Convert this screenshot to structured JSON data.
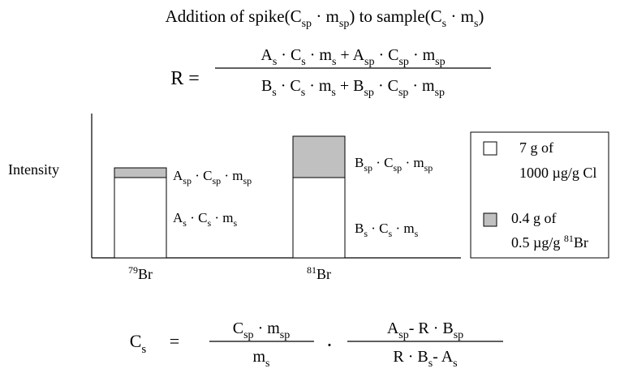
{
  "title": [
    {
      "t": "Addition of spike(C",
      "sub": "sp"
    },
    {
      "t": " · m",
      "sub": "sp"
    },
    {
      "t": ") to sample(C",
      "sub": "s"
    },
    {
      "t": " · m",
      "sub": "s"
    },
    {
      "t": ")"
    }
  ],
  "r_formula": {
    "lhs": [
      {
        "t": "R ="
      }
    ],
    "numerator": [
      {
        "t": "A",
        "sub": "s"
      },
      {
        "t": " · C",
        "sub": "s"
      },
      {
        "t": " · m",
        "sub": "s"
      },
      {
        "t": " + A",
        "sub": "sp"
      },
      {
        "t": " · C",
        "sub": "sp"
      },
      {
        "t": " · m",
        "sub": "sp"
      }
    ],
    "denominator": [
      {
        "t": "B",
        "sub": "s"
      },
      {
        "t": " · C",
        "sub": "s"
      },
      {
        "t": " · m",
        "sub": "s"
      },
      {
        "t": " + B",
        "sub": "sp"
      },
      {
        "t": " · C",
        "sub": "sp"
      },
      {
        "t": " · m",
        "sub": "sp"
      }
    ]
  },
  "diagram": {
    "y_label": [
      {
        "t": "Intensity"
      }
    ],
    "isotopes": [
      [
        {
          "sup": "79",
          "t": "Br"
        }
      ],
      [
        {
          "sup": "81",
          "t": "Br"
        }
      ]
    ],
    "spike_labels": [
      [
        {
          "t": "A",
          "sub": "sp"
        },
        {
          "t": " · C",
          "sub": "sp"
        },
        {
          "t": " · m",
          "sub": "sp"
        }
      ],
      [
        {
          "t": "B",
          "sub": "sp"
        },
        {
          "t": " · C",
          "sub": "sp"
        },
        {
          "t": " · m",
          "sub": "sp"
        }
      ]
    ],
    "sample_labels": [
      [
        {
          "t": "A",
          "sub": "s"
        },
        {
          "t": " · C",
          "sub": "s"
        },
        {
          "t": " · m",
          "sub": "s"
        }
      ],
      [
        {
          "t": "B",
          "sub": "s"
        },
        {
          "t": " · C",
          "sub": "s"
        },
        {
          "t": " · m",
          "sub": "s"
        }
      ]
    ]
  },
  "legend": [
    {
      "lines": [
        [
          {
            "t": "7 g of"
          }
        ],
        [
          {
            "t": "1000 µg/g Cl"
          }
        ]
      ]
    },
    {
      "lines": [
        [
          {
            "t": "0.4 g of"
          }
        ],
        [
          {
            "t": "0.5 µg/g "
          },
          {
            "sup": "81",
            "t": "Br"
          }
        ]
      ]
    }
  ],
  "cs_formula": {
    "lhs": [
      {
        "t": "C",
        "sub": "s"
      }
    ],
    "equals": [
      {
        "t": "="
      }
    ],
    "fraction1_numerator": [
      {
        "t": "C",
        "sub": "sp"
      },
      {
        "t": " · m",
        "sub": "sp"
      }
    ],
    "fraction1_denominator": [
      {
        "t": "m",
        "sub": "s"
      }
    ],
    "dot": [
      {
        "t": "·"
      }
    ],
    "fraction2_numerator": [
      {
        "t": "A",
        "sub": "sp"
      },
      {
        "t": "- R · B",
        "sub": "sp"
      }
    ],
    "fraction2_denominator": [
      {
        "t": "R · B",
        "sub": "s"
      },
      {
        "t": "- A",
        "sub": "s"
      }
    ]
  }
}
